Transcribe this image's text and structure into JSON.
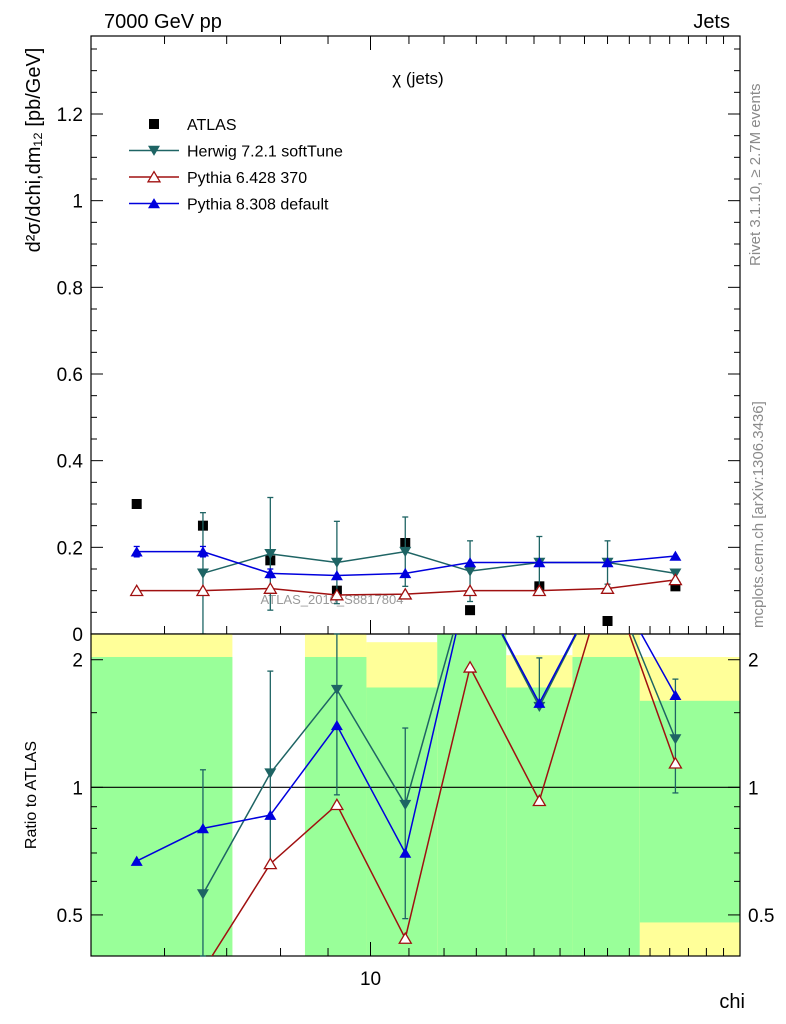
{
  "header": {
    "left": "7000 GeV pp",
    "right": "Jets"
  },
  "side_labels": {
    "rivet": "Rivet 3.1.10, ≥ 2.7M events",
    "mcplots": "mcplots.cern.ch [arXiv:1306.3436]"
  },
  "chart_data": [
    {
      "type": "scatter",
      "panel": "main",
      "title": "χ (jets)",
      "ylabel": "d²σ/dchi,dm₁₂ [pb/GeV]",
      "ylim": [
        0,
        1.38
      ],
      "xscale": "log",
      "xlim": [
        5.0,
        25.0
      ],
      "yticks": [
        "0",
        "0.2",
        "0.4",
        "0.6",
        "0.8",
        "1",
        "1.2"
      ],
      "watermark": "ATLAS_2010_S8817804",
      "legend_position": "top-left",
      "series": [
        {
          "name": "ATLAS",
          "color": "#000000",
          "marker": "square",
          "x": [
            5.6,
            6.6,
            7.8,
            9.2,
            10.9,
            12.8,
            15.2,
            18.0,
            21.3
          ],
          "y": [
            0.3,
            0.25,
            0.17,
            0.1,
            0.21,
            0.055,
            0.11,
            0.03,
            0.11
          ]
        },
        {
          "name": "Herwig 7.2.1 softTune",
          "color": "#1e6464",
          "marker": "triangle-down",
          "x": [
            6.6,
            7.8,
            9.2,
            10.9,
            12.8,
            15.2,
            18.0,
            21.3
          ],
          "y": [
            0.14,
            0.185,
            0.165,
            0.19,
            0.145,
            0.165,
            0.165,
            0.14
          ],
          "err": [
            0.14,
            0.13,
            0.095,
            0.08,
            0.07,
            0.06,
            0.05,
            0.0
          ]
        },
        {
          "name": "Pythia 6.428 370",
          "color": "#a01010",
          "marker": "triangle-open",
          "x": [
            5.6,
            6.6,
            7.8,
            9.2,
            10.9,
            12.8,
            15.2,
            18.0,
            21.3
          ],
          "y": [
            0.1,
            0.1,
            0.105,
            0.09,
            0.092,
            0.1,
            0.1,
            0.105,
            0.125
          ],
          "err": [
            0.0,
            0.0,
            0.0,
            0.0,
            0.0,
            0.0,
            0.0,
            0.0,
            0.0
          ]
        },
        {
          "name": "Pythia 8.308 default",
          "color": "#0000dd",
          "marker": "triangle-up",
          "x": [
            5.6,
            6.6,
            7.8,
            9.2,
            10.9,
            12.8,
            15.2,
            18.0,
            21.3
          ],
          "y": [
            0.19,
            0.19,
            0.14,
            0.135,
            0.14,
            0.165,
            0.165,
            0.165,
            0.18
          ],
          "err": [
            0.012,
            0.012,
            0.01,
            0.0,
            0.0,
            0.0,
            0.0,
            0.0,
            0.0
          ]
        }
      ]
    },
    {
      "type": "line",
      "panel": "ratio",
      "ylabel": "Ratio to ATLAS",
      "xlabel": "chi",
      "yscale": "log",
      "ylim": [
        0.4,
        2.3
      ],
      "yticks": [
        "0.5",
        "1",
        "2"
      ],
      "xticks": [
        "10"
      ],
      "reference_line": 1.0,
      "bands": [
        {
          "x0": 5.0,
          "x1": 7.1,
          "green": [
            0.4,
            2.03
          ],
          "yellow": [
            0.4,
            2.3
          ]
        },
        {
          "x0": 8.5,
          "x1": 9.9,
          "green": [
            0.4,
            2.03
          ],
          "yellow": [
            0.4,
            2.3
          ]
        },
        {
          "x0": 9.9,
          "x1": 11.8,
          "green": [
            0.4,
            1.72
          ],
          "yellow": [
            0.4,
            2.2
          ]
        },
        {
          "x0": 11.8,
          "x1": 14.0,
          "green": [
            0.4,
            2.3
          ],
          "yellow": [
            0.4,
            2.3
          ]
        },
        {
          "x0": 14.0,
          "x1": 16.5,
          "green": [
            0.4,
            1.72
          ],
          "yellow": [
            0.4,
            2.05
          ]
        },
        {
          "x0": 16.5,
          "x1": 19.5,
          "green": [
            0.4,
            2.03
          ],
          "yellow": [
            0.4,
            2.3
          ]
        },
        {
          "x0": 19.5,
          "x1": 25.0,
          "green": [
            0.48,
            1.6
          ],
          "yellow": [
            0.4,
            2.03
          ]
        }
      ],
      "series": [
        {
          "name": "Herwig 7.2.1 softTune",
          "color": "#1e6464",
          "marker": "triangle-down",
          "x": [
            6.6,
            7.8,
            9.2,
            10.9,
            12.8,
            15.2,
            18.0,
            21.3
          ],
          "y": [
            0.56,
            1.08,
            1.7,
            0.91,
            3.2,
            1.55,
            3.2,
            1.3
          ],
          "err_lo": [
            0.22,
            0.66,
            0.96,
            0.49,
            0,
            1.55,
            0,
            0.97
          ],
          "err_hi": [
            1.1,
            1.88,
            2.3,
            1.38,
            0,
            2.02,
            0,
            1.8
          ]
        },
        {
          "name": "Pythia 6.428 370",
          "color": "#a01010",
          "marker": "triangle-open",
          "x": [
            6.6,
            7.8,
            9.2,
            10.9,
            12.8,
            15.2,
            18.0,
            21.3
          ],
          "y": [
            0.37,
            0.66,
            0.91,
            0.44,
            1.92,
            0.93,
            3.2,
            1.14
          ]
        },
        {
          "name": "Pythia 8.308 default",
          "color": "#0000dd",
          "marker": "triangle-up",
          "x": [
            5.6,
            6.6,
            7.8,
            9.2,
            10.9,
            12.8,
            15.2,
            18.0,
            21.3
          ],
          "y": [
            0.67,
            0.8,
            0.86,
            1.4,
            0.7,
            3.2,
            1.58,
            3.2,
            1.65
          ]
        }
      ]
    }
  ]
}
